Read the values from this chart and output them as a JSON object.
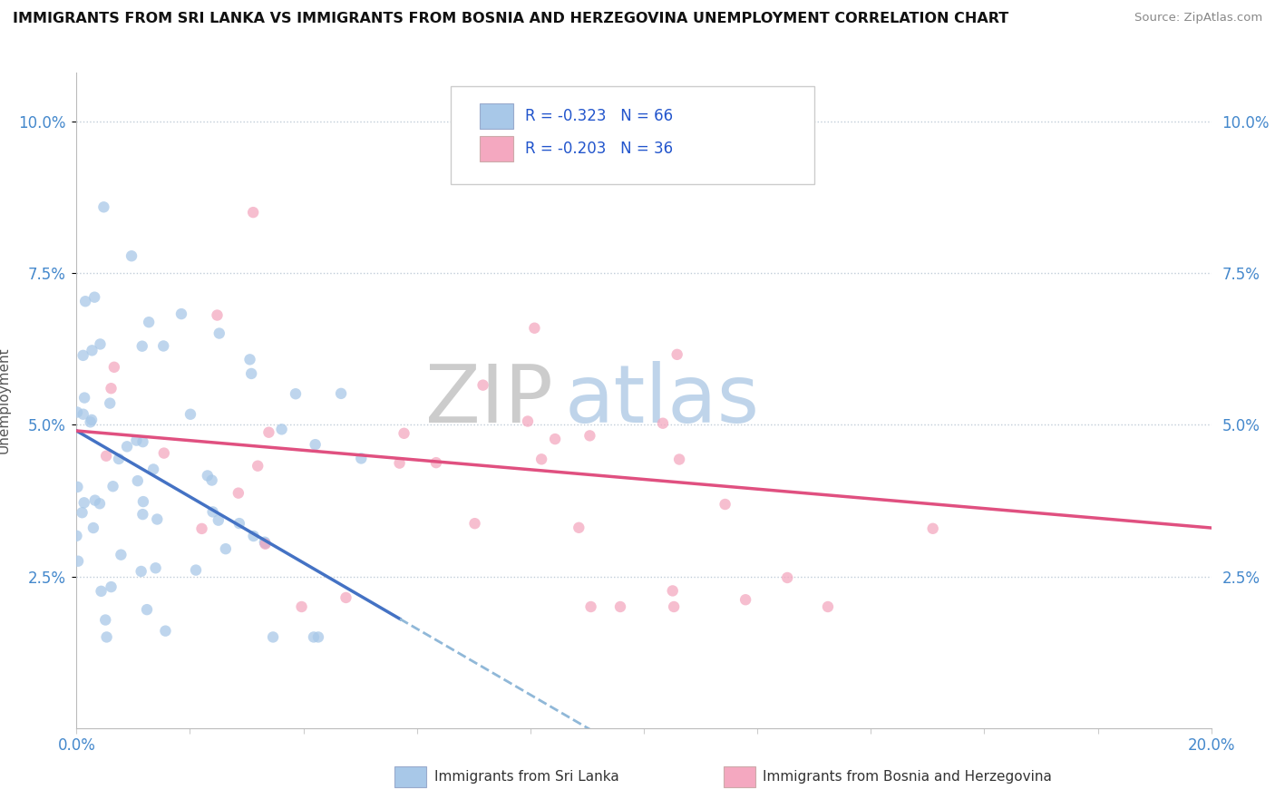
{
  "title": "IMMIGRANTS FROM SRI LANKA VS IMMIGRANTS FROM BOSNIA AND HERZEGOVINA UNEMPLOYMENT CORRELATION CHART",
  "source": "Source: ZipAtlas.com",
  "ylabel": "Unemployment",
  "y_ticks": [
    0.025,
    0.05,
    0.075,
    0.1
  ],
  "y_tick_labels": [
    "2.5%",
    "5.0%",
    "7.5%",
    "10.0%"
  ],
  "x_lim": [
    0.0,
    0.2
  ],
  "y_lim": [
    0.0,
    0.108
  ],
  "series1_color": "#a8c8e8",
  "series2_color": "#f4a8c0",
  "line1_color": "#4472c4",
  "line2_color": "#e05080",
  "line1_dashed_color": "#90b8d8",
  "series1_label": "Immigrants from Sri Lanka",
  "series2_label": "Immigrants from Bosnia and Herzegovina",
  "R1": -0.323,
  "N1": 66,
  "R2": -0.203,
  "N2": 36,
  "legend_R_color": "#2255cc",
  "watermark_zip": "ZIP",
  "watermark_atlas": "atlas",
  "seed1": 12,
  "seed2": 99
}
